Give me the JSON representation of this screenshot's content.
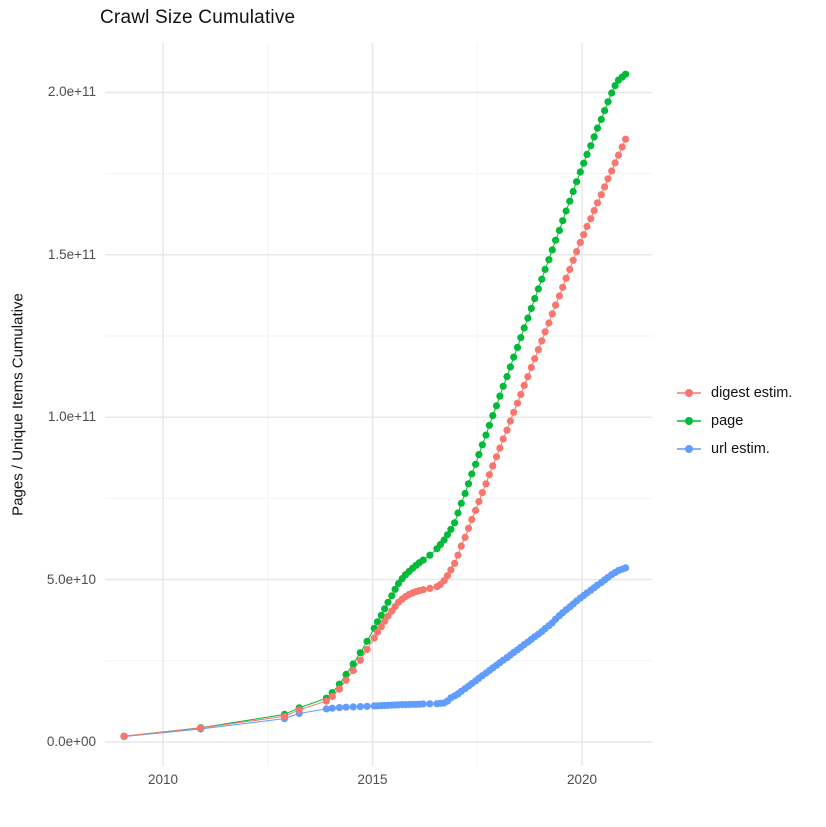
{
  "title": "Crawl Size Cumulative",
  "y_axis": {
    "label": "Pages / Unique Items Cumulative",
    "ticks": [
      {
        "value_e9": 0,
        "label": "0.0e+00"
      },
      {
        "value_e9": 50,
        "label": "5.0e+10"
      },
      {
        "value_e9": 100,
        "label": "1.0e+11"
      },
      {
        "value_e9": 150,
        "label": "1.5e+11"
      },
      {
        "value_e9": 200,
        "label": "2.0e+11"
      }
    ],
    "minor_ticks_e9": [
      25,
      75,
      125,
      175
    ]
  },
  "x_axis": {
    "ticks": [
      {
        "year": 2010,
        "label": "2010"
      },
      {
        "year": 2015,
        "label": "2015"
      },
      {
        "year": 2020,
        "label": "2020"
      }
    ],
    "minor_years": [
      2012.5,
      2017.5
    ]
  },
  "legend": [
    {
      "name": "digest estim.",
      "color": "#F8766D"
    },
    {
      "name": "page",
      "color": "#00BA38"
    },
    {
      "name": "url estim.",
      "color": "#619CFF"
    }
  ],
  "colors": {
    "digest": "#F8766D",
    "page": "#00BA38",
    "url": "#619CFF",
    "grid_major": "#E7E7E7",
    "grid_minor": "#F2F2F2",
    "tick_text": "#4d4d4d",
    "title_text": "#111111"
  },
  "chart_data": {
    "type": "line",
    "marker": "point",
    "title": "Crawl Size Cumulative",
    "xlabel": "",
    "ylabel": "Pages / Unique Items Cumulative",
    "values_unit": "pages, in billions (1e9)",
    "x_unit": "year (decimal)",
    "xlim": [
      2008.5,
      2021.7
    ],
    "ylim_e9": [
      -13,
      215
    ],
    "grid": "major+minor, light gray on white panel",
    "legend_position": "right-center",
    "x_major_ticks": [
      2010,
      2015,
      2020
    ],
    "y_major_ticks_e9": [
      0,
      50,
      100,
      150,
      200
    ],
    "series": [
      {
        "name": "url estim.",
        "color": "#619CFF",
        "points": [
          [
            2009.07,
            1.7
          ],
          [
            2010.9,
            4.0
          ],
          [
            2012.9,
            7.2
          ],
          [
            2013.25,
            8.8
          ],
          [
            2013.9,
            10.2
          ],
          [
            2014.04,
            10.4
          ],
          [
            2014.21,
            10.6
          ],
          [
            2014.37,
            10.7
          ],
          [
            2014.54,
            10.8
          ],
          [
            2014.71,
            10.9
          ],
          [
            2014.87,
            11.0
          ],
          [
            2015.04,
            11.1
          ],
          [
            2015.12,
            11.15
          ],
          [
            2015.21,
            11.2
          ],
          [
            2015.29,
            11.25
          ],
          [
            2015.37,
            11.3
          ],
          [
            2015.46,
            11.35
          ],
          [
            2015.54,
            11.4
          ],
          [
            2015.62,
            11.45
          ],
          [
            2015.71,
            11.5
          ],
          [
            2015.79,
            11.5
          ],
          [
            2015.87,
            11.55
          ],
          [
            2015.96,
            11.6
          ],
          [
            2016.04,
            11.6
          ],
          [
            2016.12,
            11.65
          ],
          [
            2016.21,
            11.7
          ],
          [
            2016.37,
            11.75
          ],
          [
            2016.54,
            11.8
          ],
          [
            2016.62,
            11.9
          ],
          [
            2016.71,
            12.0
          ],
          [
            2016.79,
            12.6
          ],
          [
            2016.87,
            13.6
          ],
          [
            2016.96,
            14.2
          ],
          [
            2017.04,
            14.8
          ],
          [
            2017.12,
            15.6
          ],
          [
            2017.21,
            16.4
          ],
          [
            2017.29,
            17.2
          ],
          [
            2017.37,
            18.0
          ],
          [
            2017.46,
            18.8
          ],
          [
            2017.54,
            19.6
          ],
          [
            2017.62,
            20.4
          ],
          [
            2017.71,
            21.2
          ],
          [
            2017.79,
            22.0
          ],
          [
            2017.87,
            22.8
          ],
          [
            2017.96,
            23.6
          ],
          [
            2018.04,
            24.4
          ],
          [
            2018.12,
            25.2
          ],
          [
            2018.21,
            26.0
          ],
          [
            2018.29,
            26.8
          ],
          [
            2018.37,
            27.6
          ],
          [
            2018.46,
            28.4
          ],
          [
            2018.54,
            29.2
          ],
          [
            2018.62,
            30.0
          ],
          [
            2018.71,
            30.8
          ],
          [
            2018.79,
            31.6
          ],
          [
            2018.87,
            32.4
          ],
          [
            2018.96,
            33.2
          ],
          [
            2019.04,
            34.0
          ],
          [
            2019.12,
            34.9
          ],
          [
            2019.21,
            35.8
          ],
          [
            2019.29,
            36.7
          ],
          [
            2019.37,
            37.8
          ],
          [
            2019.46,
            38.9
          ],
          [
            2019.54,
            39.8
          ],
          [
            2019.62,
            40.7
          ],
          [
            2019.71,
            41.6
          ],
          [
            2019.79,
            42.5
          ],
          [
            2019.87,
            43.4
          ],
          [
            2019.96,
            44.3
          ],
          [
            2020.04,
            45.1
          ],
          [
            2020.12,
            45.9
          ],
          [
            2020.21,
            46.7
          ],
          [
            2020.29,
            47.5
          ],
          [
            2020.37,
            48.3
          ],
          [
            2020.46,
            49.1
          ],
          [
            2020.54,
            49.9
          ],
          [
            2020.62,
            50.7
          ],
          [
            2020.71,
            51.5
          ],
          [
            2020.79,
            52.2
          ],
          [
            2020.87,
            52.8
          ],
          [
            2020.96,
            53.2
          ],
          [
            2021.04,
            53.6
          ]
        ]
      },
      {
        "name": "page",
        "color": "#00BA38",
        "points": [
          [
            2009.07,
            1.8
          ],
          [
            2010.9,
            4.4
          ],
          [
            2012.9,
            8.5
          ],
          [
            2013.25,
            10.5
          ],
          [
            2013.9,
            13.5
          ],
          [
            2014.04,
            15.2
          ],
          [
            2014.21,
            17.8
          ],
          [
            2014.37,
            20.8
          ],
          [
            2014.54,
            24.0
          ],
          [
            2014.71,
            27.5
          ],
          [
            2014.87,
            31.0
          ],
          [
            2015.04,
            35.0
          ],
          [
            2015.12,
            37.0
          ],
          [
            2015.21,
            39.0
          ],
          [
            2015.29,
            41.0
          ],
          [
            2015.37,
            43.0
          ],
          [
            2015.46,
            45.0
          ],
          [
            2015.54,
            47.0
          ],
          [
            2015.62,
            48.8
          ],
          [
            2015.71,
            50.3
          ],
          [
            2015.79,
            51.5
          ],
          [
            2015.87,
            52.5
          ],
          [
            2015.96,
            53.5
          ],
          [
            2016.04,
            54.4
          ],
          [
            2016.12,
            55.2
          ],
          [
            2016.21,
            56.0
          ],
          [
            2016.37,
            57.5
          ],
          [
            2016.54,
            59.5
          ],
          [
            2016.62,
            60.8
          ],
          [
            2016.71,
            62.2
          ],
          [
            2016.79,
            63.8
          ],
          [
            2016.87,
            65.5
          ],
          [
            2016.96,
            67.5
          ],
          [
            2017.04,
            70.5
          ],
          [
            2017.12,
            73.5
          ],
          [
            2017.21,
            76.5
          ],
          [
            2017.29,
            79.5
          ],
          [
            2017.37,
            82.5
          ],
          [
            2017.46,
            85.5
          ],
          [
            2017.54,
            88.5
          ],
          [
            2017.62,
            91.5
          ],
          [
            2017.71,
            94.5
          ],
          [
            2017.79,
            97.5
          ],
          [
            2017.87,
            100.5
          ],
          [
            2017.96,
            103.5
          ],
          [
            2018.04,
            106.5
          ],
          [
            2018.12,
            109.5
          ],
          [
            2018.21,
            112.5
          ],
          [
            2018.29,
            115.5
          ],
          [
            2018.37,
            118.5
          ],
          [
            2018.46,
            121.5
          ],
          [
            2018.54,
            124.5
          ],
          [
            2018.62,
            127.5
          ],
          [
            2018.71,
            130.5
          ],
          [
            2018.79,
            133.5
          ],
          [
            2018.87,
            136.5
          ],
          [
            2018.96,
            139.5
          ],
          [
            2019.04,
            142.5
          ],
          [
            2019.12,
            145.5
          ],
          [
            2019.21,
            148.5
          ],
          [
            2019.29,
            151.5
          ],
          [
            2019.37,
            154.5
          ],
          [
            2019.46,
            157.5
          ],
          [
            2019.54,
            160.5
          ],
          [
            2019.62,
            163.5
          ],
          [
            2019.71,
            166.5
          ],
          [
            2019.79,
            169.5
          ],
          [
            2019.87,
            172.5
          ],
          [
            2019.96,
            175.5
          ],
          [
            2020.04,
            178.2
          ],
          [
            2020.12,
            180.9
          ],
          [
            2020.21,
            183.6
          ],
          [
            2020.29,
            186.3
          ],
          [
            2020.37,
            189.0
          ],
          [
            2020.46,
            191.7
          ],
          [
            2020.54,
            194.4
          ],
          [
            2020.62,
            197.1
          ],
          [
            2020.71,
            199.8
          ],
          [
            2020.79,
            202.1
          ],
          [
            2020.87,
            203.8
          ],
          [
            2020.96,
            204.7
          ],
          [
            2021.04,
            205.6
          ]
        ]
      },
      {
        "name": "digest estim.",
        "color": "#F8766D",
        "points": [
          [
            2009.07,
            1.8
          ],
          [
            2010.9,
            4.3
          ],
          [
            2012.9,
            7.9
          ],
          [
            2013.25,
            9.9
          ],
          [
            2013.9,
            12.6
          ],
          [
            2014.04,
            14.0
          ],
          [
            2014.21,
            16.3
          ],
          [
            2014.37,
            19.0
          ],
          [
            2014.54,
            22.0
          ],
          [
            2014.71,
            25.2
          ],
          [
            2014.87,
            28.5
          ],
          [
            2015.04,
            32.0
          ],
          [
            2015.12,
            33.8
          ],
          [
            2015.21,
            35.5
          ],
          [
            2015.29,
            37.2
          ],
          [
            2015.37,
            38.8
          ],
          [
            2015.46,
            40.3
          ],
          [
            2015.54,
            41.7
          ],
          [
            2015.62,
            43.0
          ],
          [
            2015.71,
            44.0
          ],
          [
            2015.79,
            44.8
          ],
          [
            2015.87,
            45.4
          ],
          [
            2015.96,
            45.9
          ],
          [
            2016.04,
            46.3
          ],
          [
            2016.12,
            46.6
          ],
          [
            2016.21,
            46.9
          ],
          [
            2016.37,
            47.3
          ],
          [
            2016.54,
            47.8
          ],
          [
            2016.62,
            48.5
          ],
          [
            2016.71,
            49.7
          ],
          [
            2016.79,
            51.2
          ],
          [
            2016.87,
            53.0
          ],
          [
            2016.96,
            55.0
          ],
          [
            2017.04,
            57.5
          ],
          [
            2017.12,
            60.3
          ],
          [
            2017.21,
            63.0
          ],
          [
            2017.29,
            65.8
          ],
          [
            2017.37,
            68.5
          ],
          [
            2017.46,
            71.3
          ],
          [
            2017.54,
            74.0
          ],
          [
            2017.62,
            76.8
          ],
          [
            2017.71,
            79.5
          ],
          [
            2017.79,
            82.3
          ],
          [
            2017.87,
            85.0
          ],
          [
            2017.96,
            87.8
          ],
          [
            2018.04,
            90.5
          ],
          [
            2018.12,
            93.3
          ],
          [
            2018.21,
            96.0
          ],
          [
            2018.29,
            98.8
          ],
          [
            2018.37,
            101.5
          ],
          [
            2018.46,
            104.3
          ],
          [
            2018.54,
            107.0
          ],
          [
            2018.62,
            109.8
          ],
          [
            2018.71,
            112.5
          ],
          [
            2018.79,
            115.3
          ],
          [
            2018.87,
            118.0
          ],
          [
            2018.96,
            120.8
          ],
          [
            2019.04,
            123.5
          ],
          [
            2019.12,
            126.3
          ],
          [
            2019.21,
            129.0
          ],
          [
            2019.29,
            131.8
          ],
          [
            2019.37,
            134.5
          ],
          [
            2019.46,
            137.3
          ],
          [
            2019.54,
            140.0
          ],
          [
            2019.62,
            142.8
          ],
          [
            2019.71,
            145.5
          ],
          [
            2019.79,
            148.3
          ],
          [
            2019.87,
            151.0
          ],
          [
            2019.96,
            153.8
          ],
          [
            2020.04,
            156.2
          ],
          [
            2020.12,
            158.7
          ],
          [
            2020.21,
            161.1
          ],
          [
            2020.29,
            163.6
          ],
          [
            2020.37,
            166.0
          ],
          [
            2020.46,
            168.5
          ],
          [
            2020.54,
            170.9
          ],
          [
            2020.62,
            173.4
          ],
          [
            2020.71,
            175.8
          ],
          [
            2020.79,
            178.3
          ],
          [
            2020.87,
            180.7
          ],
          [
            2020.96,
            183.2
          ],
          [
            2021.04,
            185.6
          ]
        ]
      }
    ]
  }
}
